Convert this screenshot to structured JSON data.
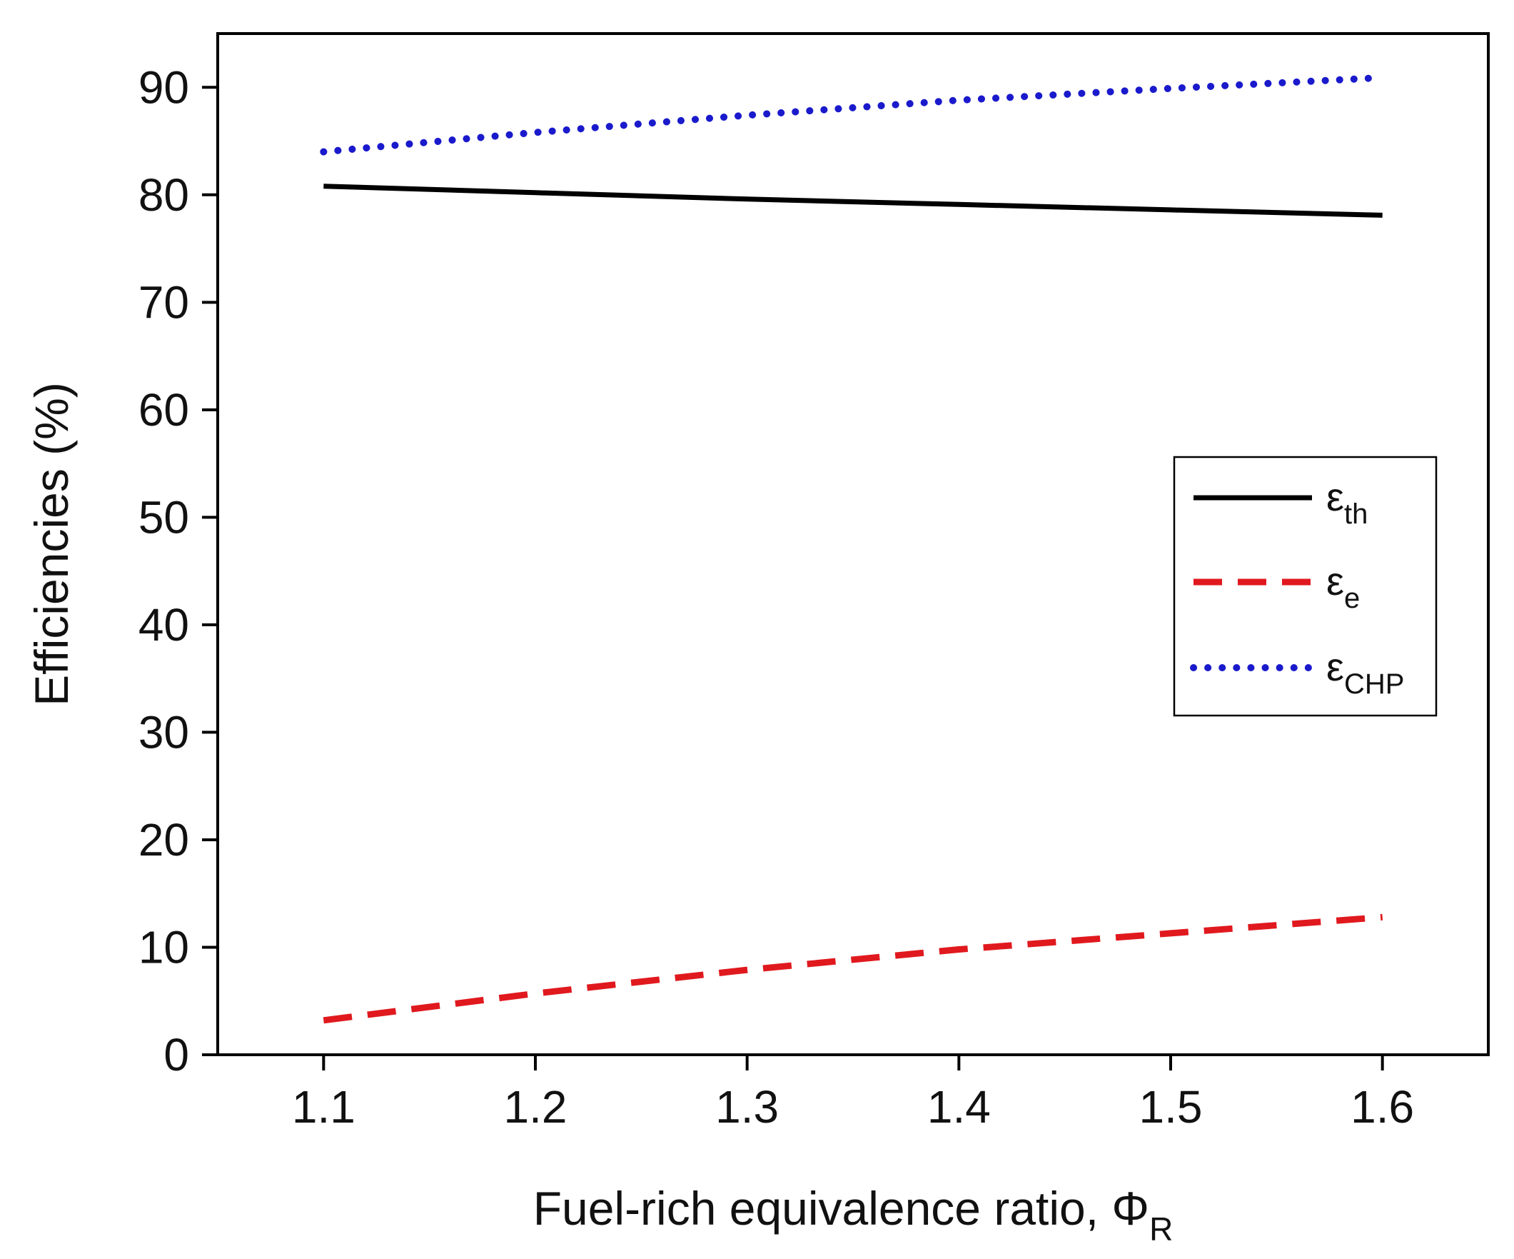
{
  "chart_data": {
    "type": "line",
    "title": "",
    "xlabel": "Fuel-rich equivalence ratio, Φ",
    "xlabel_sub": "R",
    "ylabel": "Efficiencies (%)",
    "x": [
      1.1,
      1.2,
      1.3,
      1.4,
      1.5,
      1.6
    ],
    "xlim": [
      1.05,
      1.65
    ],
    "ylim": [
      0,
      95
    ],
    "x_ticks": [
      "1.1",
      "1.2",
      "1.3",
      "1.4",
      "1.5",
      "1.6"
    ],
    "y_ticks": [
      "0",
      "10",
      "20",
      "30",
      "40",
      "50",
      "60",
      "70",
      "80",
      "90"
    ],
    "grid": false,
    "legend_position": "right",
    "series": [
      {
        "name": "ε",
        "sub": "th",
        "style": "solid",
        "color": "#000000",
        "values": [
          80.8,
          80.2,
          79.6,
          79.1,
          78.6,
          78.1
        ]
      },
      {
        "name": "ε",
        "sub": "e",
        "style": "dashed",
        "color": "#e0191e",
        "values": [
          3.2,
          5.7,
          7.9,
          9.8,
          11.3,
          12.8
        ]
      },
      {
        "name": "ε",
        "sub": "CHP",
        "style": "dotted",
        "color": "#1a1acc",
        "values": [
          84.0,
          85.8,
          87.4,
          88.8,
          89.9,
          90.9
        ]
      }
    ]
  }
}
